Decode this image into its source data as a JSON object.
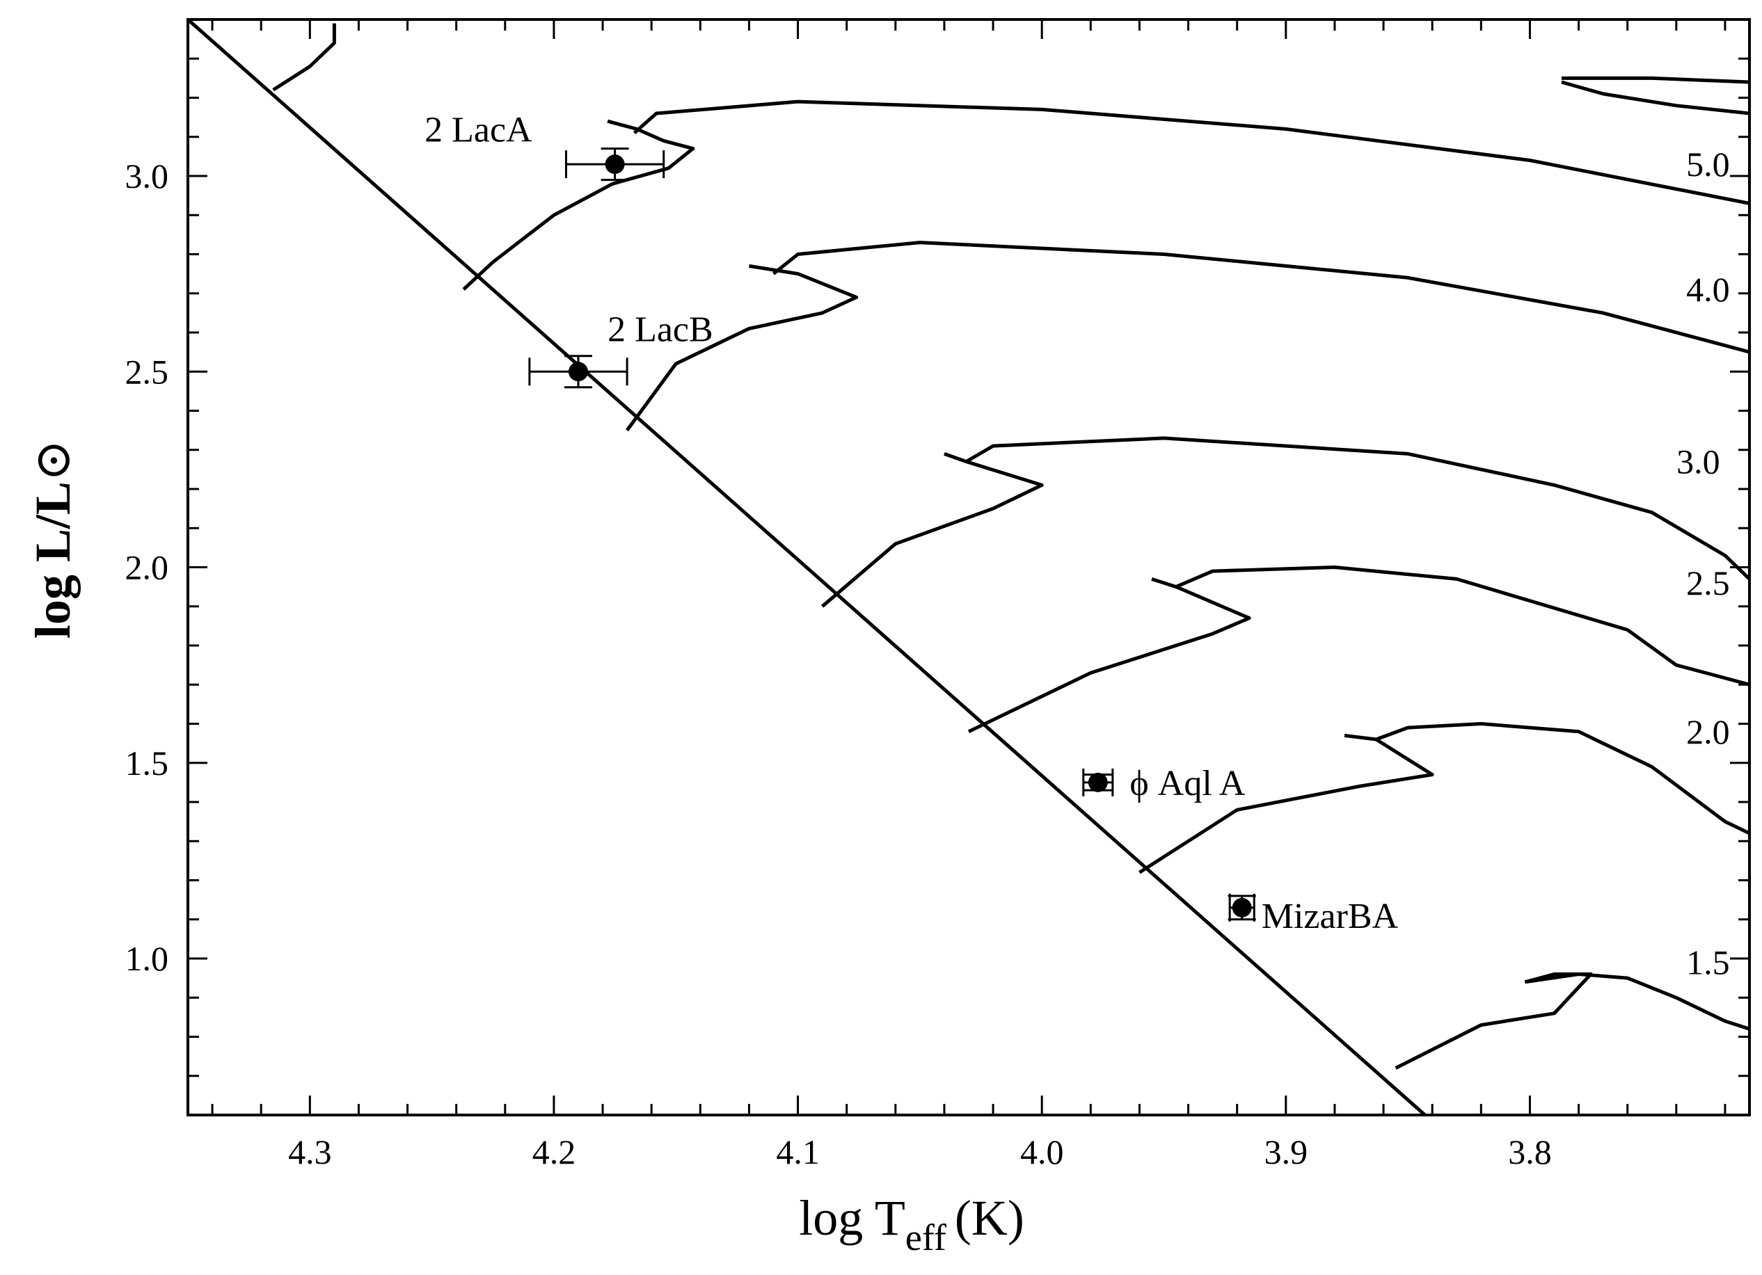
{
  "chart_data": {
    "type": "line",
    "xlabel": {
      "main": "log T",
      "sub": "eff",
      "unit": "(K)"
    },
    "ylabel": {
      "main": "log L/L",
      "symbol": "⊙"
    },
    "xlim": [
      4.35,
      3.71
    ],
    "ylim": [
      0.6,
      3.4
    ],
    "x_ticks": [
      4.3,
      4.2,
      4.1,
      4.0,
      3.9,
      3.8
    ],
    "x_tick_labels": [
      "4.3",
      "4.2",
      "4.1",
      "4.0",
      "3.9",
      "3.8"
    ],
    "y_ticks": [
      1.0,
      1.5,
      2.0,
      2.5,
      3.0
    ],
    "y_tick_labels": [
      "1.0",
      "1.5",
      "2.0",
      "2.5",
      "3.0"
    ],
    "grid": false,
    "zams": {
      "x": [
        4.35,
        3.843
      ],
      "y": [
        3.4,
        0.6
      ]
    },
    "tracks": [
      {
        "label": "5.0",
        "x": [
          4.178,
          4.166,
          4.155,
          4.143,
          4.153,
          4.176,
          4.2,
          4.225,
          4.237
        ],
        "y": [
          3.14,
          3.12,
          3.09,
          3.07,
          3.02,
          2.98,
          2.9,
          2.78,
          2.71
        ]
      },
      {
        "label": "5.0",
        "x": [
          4.167,
          4.158,
          4.1,
          4.0,
          3.9,
          3.8,
          3.71
        ],
        "y": [
          3.11,
          3.16,
          3.19,
          3.17,
          3.12,
          3.04,
          2.93
        ]
      },
      {
        "label": "",
        "x": [
          4.315,
          4.3,
          4.29,
          4.29
        ],
        "y": [
          3.22,
          3.28,
          3.34,
          3.39
        ]
      },
      {
        "label": "",
        "x": [
          3.71,
          3.75,
          3.787
        ],
        "y": [
          3.24,
          3.25,
          3.25
        ]
      },
      {
        "label": "",
        "x": [
          3.787,
          3.77,
          3.74,
          3.71
        ],
        "y": [
          3.24,
          3.21,
          3.18,
          3.16
        ]
      },
      {
        "label": "4.0",
        "x": [
          4.12,
          4.1,
          4.076,
          4.09,
          4.12,
          4.15,
          4.17
        ],
        "y": [
          2.77,
          2.75,
          2.69,
          2.65,
          2.61,
          2.52,
          2.35
        ]
      },
      {
        "label": "4.0",
        "x": [
          4.11,
          4.1,
          4.05,
          3.95,
          3.85,
          3.77,
          3.71
        ],
        "y": [
          2.75,
          2.8,
          2.83,
          2.8,
          2.74,
          2.65,
          2.55
        ]
      },
      {
        "label": "3.0",
        "x": [
          4.04,
          4.031,
          4.0,
          4.02,
          4.06,
          4.09
        ],
        "y": [
          2.29,
          2.27,
          2.21,
          2.15,
          2.06,
          1.9
        ]
      },
      {
        "label": "3.0",
        "x": [
          4.031,
          4.02,
          3.95,
          3.85,
          3.79,
          3.75,
          3.72,
          3.71
        ],
        "y": [
          2.27,
          2.31,
          2.33,
          2.29,
          2.21,
          2.14,
          2.03,
          1.97
        ]
      },
      {
        "label": "2.5",
        "x": [
          3.955,
          3.945,
          3.915,
          3.93,
          3.98,
          4.01,
          4.03
        ],
        "y": [
          1.97,
          1.95,
          1.87,
          1.83,
          1.73,
          1.64,
          1.58
        ]
      },
      {
        "label": "2.5",
        "x": [
          3.945,
          3.93,
          3.88,
          3.83,
          3.76,
          3.74,
          3.71
        ],
        "y": [
          1.95,
          1.99,
          2.0,
          1.97,
          1.84,
          1.75,
          1.7
        ]
      },
      {
        "label": "2.0",
        "x": [
          3.876,
          3.863,
          3.84,
          3.87,
          3.92,
          3.96
        ],
        "y": [
          1.57,
          1.56,
          1.47,
          1.44,
          1.38,
          1.22
        ]
      },
      {
        "label": "2.0",
        "x": [
          3.863,
          3.85,
          3.82,
          3.78,
          3.75,
          3.72,
          3.71
        ],
        "y": [
          1.56,
          1.59,
          1.6,
          1.58,
          1.49,
          1.35,
          1.32
        ]
      },
      {
        "label": "1.5",
        "x": [
          3.802,
          3.79,
          3.775,
          3.79,
          3.82,
          3.855
        ],
        "y": [
          0.94,
          0.96,
          0.96,
          0.86,
          0.83,
          0.72
        ]
      },
      {
        "label": "1.5",
        "x": [
          3.802,
          3.78,
          3.76,
          3.74,
          3.72,
          3.71
        ],
        "y": [
          0.94,
          0.96,
          0.95,
          0.9,
          0.84,
          0.82
        ]
      }
    ],
    "track_labels": [
      {
        "text": "5.0",
        "x": 3.727,
        "y": 3.03
      },
      {
        "text": "4.0",
        "x": 3.727,
        "y": 2.71
      },
      {
        "text": "3.0",
        "x": 3.731,
        "y": 2.27
      },
      {
        "text": "2.5",
        "x": 3.727,
        "y": 1.96
      },
      {
        "text": "2.0",
        "x": 3.727,
        "y": 1.58
      },
      {
        "text": "1.5",
        "x": 3.727,
        "y": 0.99
      }
    ],
    "stars": [
      {
        "name": "2 LacA",
        "x": 4.175,
        "y": 3.03,
        "xerr": 0.02,
        "yerr": 0.04,
        "label_x": 4.253,
        "label_y": 3.12
      },
      {
        "name": "2 LacB",
        "x": 4.19,
        "y": 2.5,
        "xerr": 0.02,
        "yerr": 0.04,
        "label_x": 4.178,
        "label_y": 2.61
      },
      {
        "name": "ϕ  Aql A",
        "x": 3.977,
        "y": 1.45,
        "xerr": 0.006,
        "yerr": 0.02,
        "label_x": 3.964,
        "label_y": 1.45
      },
      {
        "name": "MizarBA",
        "x": 3.918,
        "y": 1.13,
        "xerr": 0.005,
        "yerr": 0.03,
        "label_x": 3.91,
        "label_y": 1.11
      }
    ]
  }
}
